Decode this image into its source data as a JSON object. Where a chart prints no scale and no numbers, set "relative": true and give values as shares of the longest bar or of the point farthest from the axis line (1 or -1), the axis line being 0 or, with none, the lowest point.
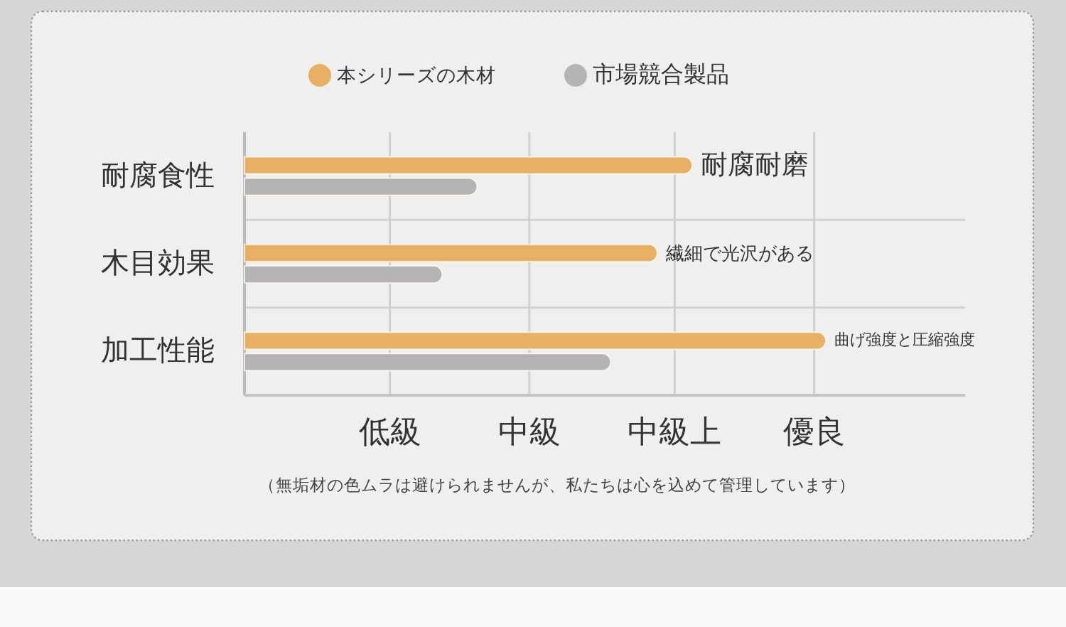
{
  "chart_data": {
    "type": "bar",
    "orientation": "horizontal",
    "relative": true,
    "categories": [
      "耐腐食性",
      "木目効果",
      "加工性能"
    ],
    "series": [
      {
        "name": "本シリーズの木材",
        "color": "#e8b062",
        "values": [
          0.77,
          0.71,
          1.0
        ]
      },
      {
        "name": "市場競合製品",
        "color": "#b4b4b4",
        "values": [
          0.4,
          0.34,
          0.63
        ]
      }
    ],
    "ref_lines": [
      {
        "axis": "x",
        "value": 0.25,
        "label": "低級",
        "color": "#cfcfcf"
      },
      {
        "axis": "x",
        "value": 0.49,
        "label": "中級",
        "color": "#cfcfcf"
      },
      {
        "axis": "x",
        "value": 0.74,
        "label": "中級上",
        "color": "#cfcfcf"
      },
      {
        "axis": "x",
        "value": 0.98,
        "label": "優良",
        "color": "#cfcfcf"
      }
    ],
    "grid": "y",
    "legend": "top",
    "annotations": [
      {
        "text": "耐腐耐磨",
        "x": 0.77,
        "y": "耐腐食性"
      },
      {
        "text": "繊細で光沢がある",
        "x": 0.71,
        "y": "木目効果"
      },
      {
        "text": "曲げ強度と圧縮強度",
        "x": 1.0,
        "y": "加工性能"
      },
      "（無垢材の色ムラは避けられませんが、私たちは心を込めて管理しています）"
    ]
  }
}
